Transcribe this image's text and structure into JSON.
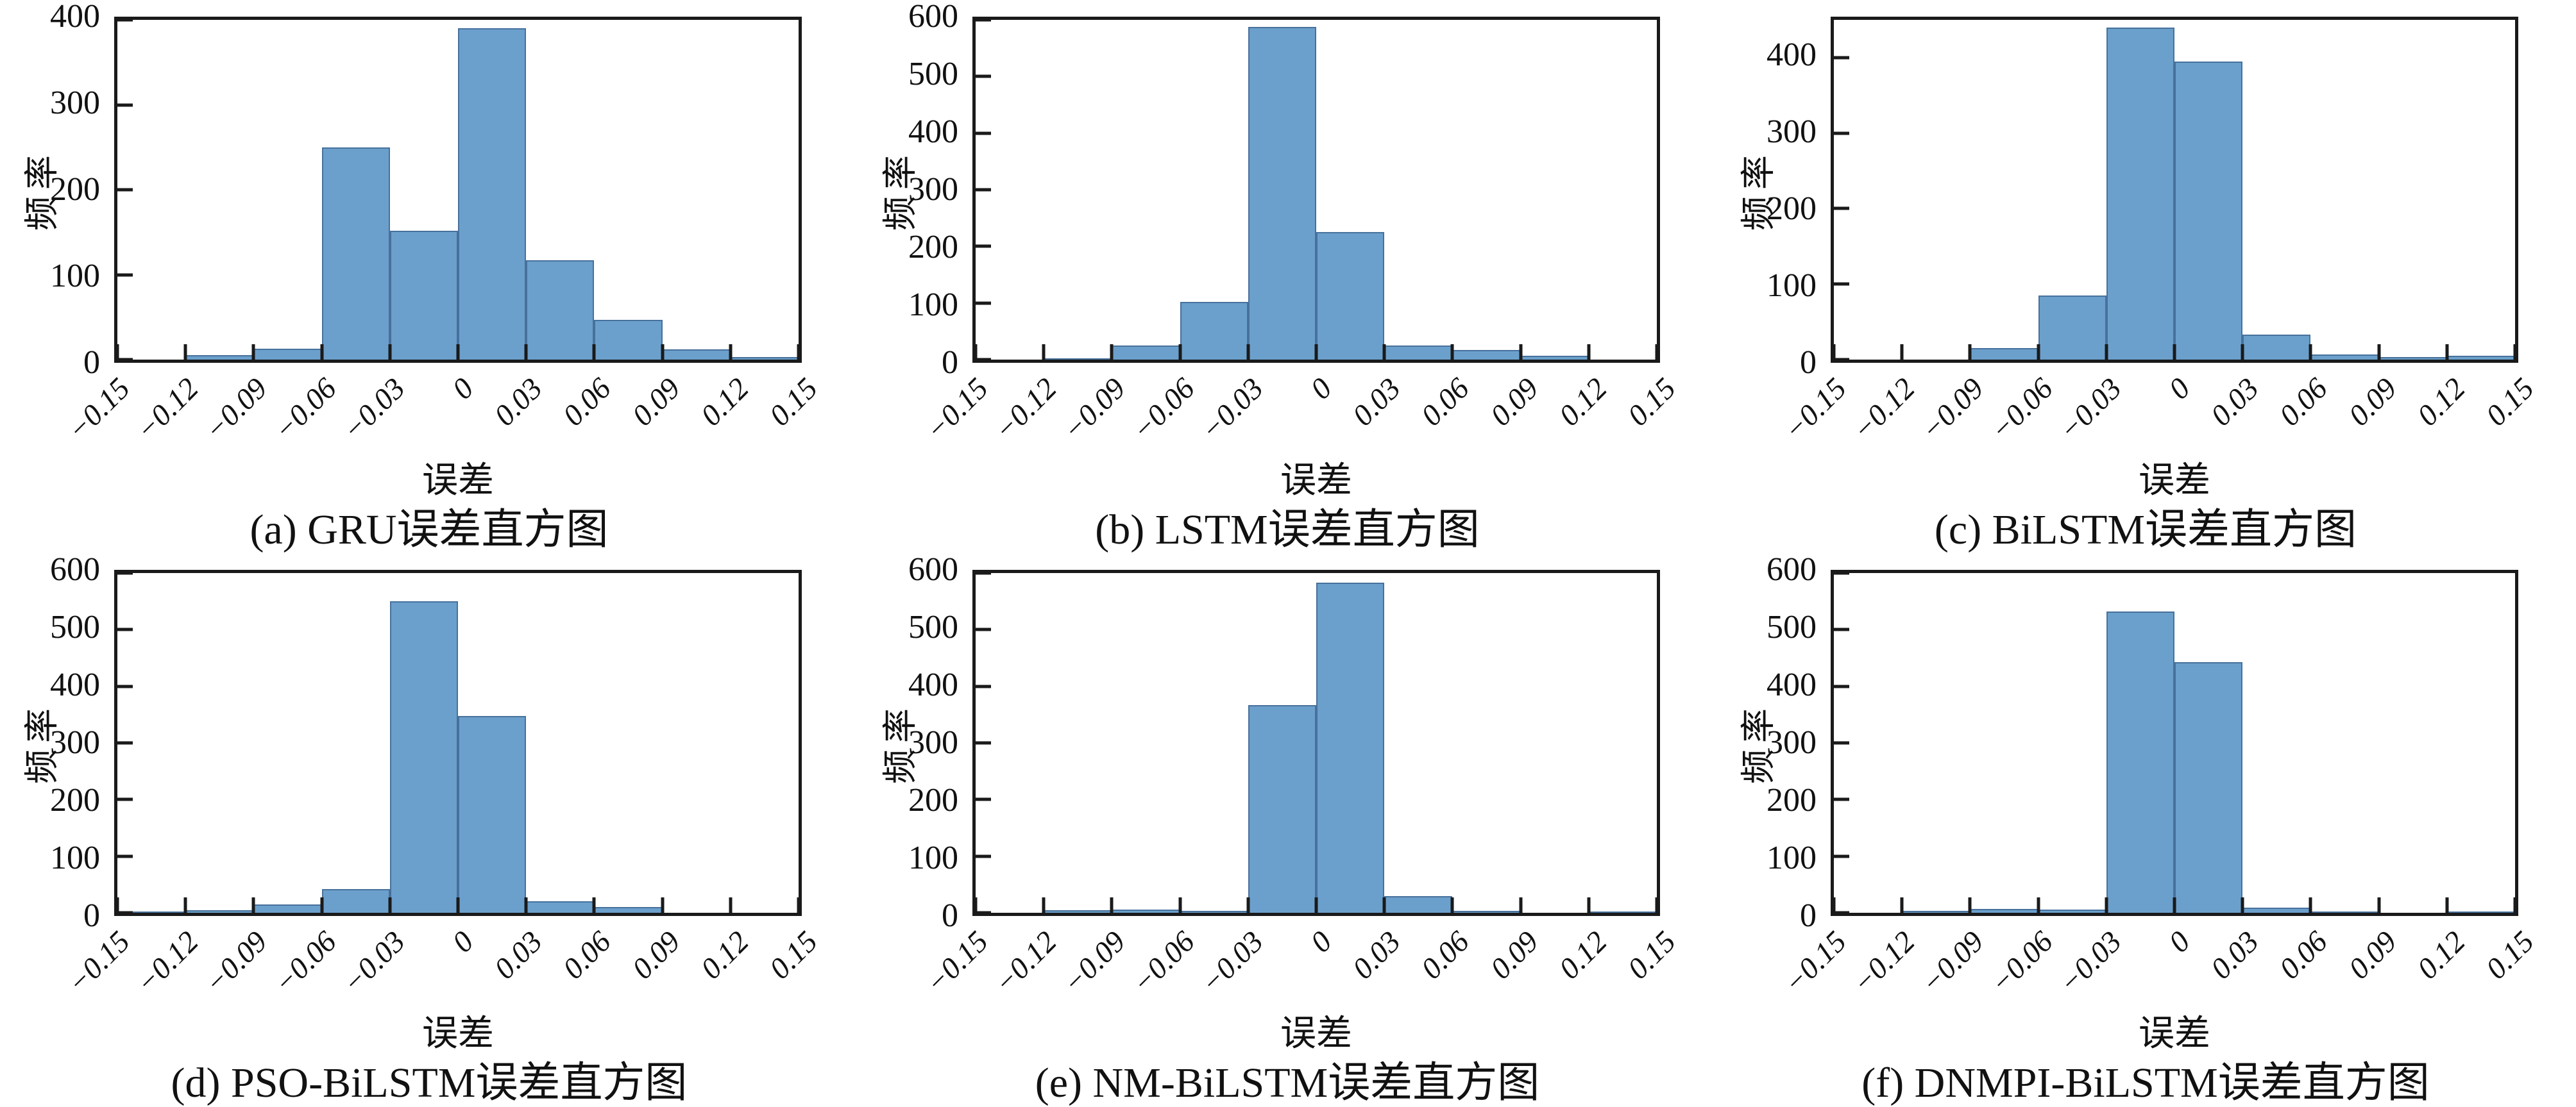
{
  "figure": {
    "background": "#ffffff",
    "bar_fill_color": "#6CA0CC",
    "bar_edge_color": "#47719C",
    "axis_color": "#1a1a1a",
    "grid": "off",
    "legend": "none"
  },
  "chart_data": [
    {
      "id": "a",
      "type": "bar",
      "caption": "(a) GRU误差直方图",
      "xlabel": "误差",
      "ylabel": "频率",
      "bin_width": 0.03,
      "bin_edges": [
        -0.15,
        -0.12,
        -0.09,
        -0.06,
        -0.03,
        0,
        0.03,
        0.06,
        0.09,
        0.12,
        0.15
      ],
      "x_tick_labels": [
        "−0.15",
        "−0.12",
        "−0.09",
        "−0.06",
        "−0.03",
        "0",
        "0.03",
        "0.06",
        "0.09",
        "0.12",
        "0.15"
      ],
      "values": [
        0,
        5,
        13,
        250,
        152,
        390,
        117,
        47,
        12,
        3
      ],
      "ylim": [
        0,
        400
      ],
      "yticks": [
        0,
        100,
        200,
        300,
        400
      ]
    },
    {
      "id": "b",
      "type": "bar",
      "caption": "(b) LSTM误差直方图",
      "xlabel": "误差",
      "ylabel": "频率",
      "bin_width": 0.03,
      "bin_edges": [
        -0.15,
        -0.12,
        -0.09,
        -0.06,
        -0.03,
        0,
        0.03,
        0.06,
        0.09,
        0.12,
        0.15
      ],
      "x_tick_labels": [
        "−0.15",
        "−0.12",
        "−0.09",
        "−0.06",
        "−0.03",
        "0",
        "0.03",
        "0.06",
        "0.09",
        "0.12",
        "0.15"
      ],
      "values": [
        0,
        2,
        25,
        102,
        588,
        225,
        25,
        17,
        7,
        0
      ],
      "ylim": [
        0,
        600
      ],
      "yticks": [
        0,
        100,
        200,
        300,
        400,
        500,
        600
      ]
    },
    {
      "id": "c",
      "type": "bar",
      "caption": "(c) BiLSTM误差直方图",
      "xlabel": "误差",
      "ylabel": "频率",
      "bin_width": 0.03,
      "bin_edges": [
        -0.15,
        -0.12,
        -0.09,
        -0.06,
        -0.03,
        0,
        0.03,
        0.06,
        0.09,
        0.12,
        0.15
      ],
      "x_tick_labels": [
        "−0.15",
        "−0.12",
        "−0.09",
        "−0.06",
        "−0.03",
        "0",
        "0.03",
        "0.06",
        "0.09",
        "0.12",
        "0.15"
      ],
      "values": [
        0,
        0,
        15,
        85,
        440,
        395,
        33,
        7,
        3,
        5
      ],
      "ylim": [
        0,
        450
      ],
      "yticks": [
        0,
        100,
        200,
        300,
        400
      ]
    },
    {
      "id": "d",
      "type": "bar",
      "caption": "(d) PSO-BiLSTM误差直方图",
      "xlabel": "误差",
      "ylabel": "频率",
      "bin_width": 0.03,
      "bin_edges": [
        -0.15,
        -0.12,
        -0.09,
        -0.06,
        -0.03,
        0,
        0.03,
        0.06,
        0.09,
        0.12,
        0.15
      ],
      "x_tick_labels": [
        "−0.15",
        "−0.12",
        "−0.09",
        "−0.06",
        "−0.03",
        "0",
        "0.03",
        "0.06",
        "0.09",
        "0.12",
        "0.15"
      ],
      "values": [
        2,
        5,
        15,
        42,
        550,
        348,
        20,
        10,
        0,
        0
      ],
      "ylim": [
        0,
        600
      ],
      "yticks": [
        0,
        100,
        200,
        300,
        400,
        500,
        600
      ]
    },
    {
      "id": "e",
      "type": "bar",
      "caption": "(e) NM-BiLSTM误差直方图",
      "xlabel": "误差",
      "ylabel": "频率",
      "bin_width": 0.03,
      "bin_edges": [
        -0.15,
        -0.12,
        -0.09,
        -0.06,
        -0.03,
        0,
        0.03,
        0.06,
        0.09,
        0.12,
        0.15
      ],
      "x_tick_labels": [
        "−0.15",
        "−0.12",
        "−0.09",
        "−0.06",
        "−0.03",
        "0",
        "0.03",
        "0.06",
        "0.09",
        "0.12",
        "0.15"
      ],
      "values": [
        0,
        5,
        6,
        3,
        367,
        583,
        30,
        3,
        0,
        2
      ],
      "ylim": [
        0,
        600
      ],
      "yticks": [
        0,
        100,
        200,
        300,
        400,
        500,
        600
      ]
    },
    {
      "id": "f",
      "type": "bar",
      "caption": "(f) DNMPI-BiLSTM误差直方图",
      "xlabel": "误差",
      "ylabel": "频率",
      "bin_width": 0.03,
      "bin_edges": [
        -0.15,
        -0.12,
        -0.09,
        -0.06,
        -0.03,
        0,
        0.03,
        0.06,
        0.09,
        0.12,
        0.15
      ],
      "x_tick_labels": [
        "−0.15",
        "−0.12",
        "−0.09",
        "−0.06",
        "−0.03",
        "0",
        "0.03",
        "0.06",
        "0.09",
        "0.12",
        "0.15"
      ],
      "values": [
        0,
        3,
        7,
        6,
        532,
        443,
        9,
        2,
        0,
        2
      ],
      "ylim": [
        0,
        600
      ],
      "yticks": [
        0,
        100,
        200,
        300,
        400,
        500,
        600
      ]
    }
  ]
}
